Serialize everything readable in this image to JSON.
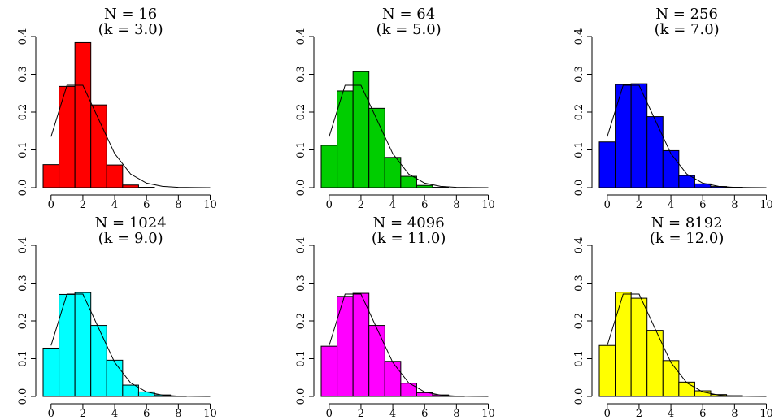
{
  "chart_data": [
    {
      "type": "bar",
      "title": "N = 16",
      "subtitle": "(k = 3.0)",
      "bar_color": "#ff0000",
      "x_ticks": [
        "0",
        "2",
        "4",
        "6",
        "8",
        "10"
      ],
      "y_ticks": [
        "0.0",
        "0.1",
        "0.2",
        "0.3",
        "0.4"
      ],
      "xlim": [
        -0.5,
        10.5
      ],
      "ylim": [
        0,
        0.4
      ],
      "bars": [
        {
          "x": 0,
          "value": 0.061
        },
        {
          "x": 1,
          "value": 0.268
        },
        {
          "x": 2,
          "value": 0.384
        },
        {
          "x": 3,
          "value": 0.219
        },
        {
          "x": 4,
          "value": 0.06
        },
        {
          "x": 5,
          "value": 0.007
        },
        {
          "x": 6,
          "value": 0.001
        },
        {
          "x": 7,
          "value": 0.0
        },
        {
          "x": 8,
          "value": 0.0
        },
        {
          "x": 9,
          "value": 0.0
        },
        {
          "x": 10,
          "value": 0.0
        }
      ],
      "curve": {
        "x": [
          0,
          1,
          2,
          3,
          4,
          5,
          6,
          7,
          8,
          9,
          10
        ],
        "y": [
          0.135,
          0.271,
          0.271,
          0.18,
          0.09,
          0.036,
          0.012,
          0.0034,
          0.0009,
          0.0002,
          0.0
        ]
      }
    },
    {
      "type": "bar",
      "title": "N = 64",
      "subtitle": "(k = 5.0)",
      "bar_color": "#00cd00",
      "x_ticks": [
        "0",
        "2",
        "4",
        "6",
        "8",
        "10"
      ],
      "y_ticks": [
        "0.0",
        "0.1",
        "0.2",
        "0.3",
        "0.4"
      ],
      "xlim": [
        -0.5,
        10.5
      ],
      "ylim": [
        0,
        0.4
      ],
      "bars": [
        {
          "x": 0,
          "value": 0.112
        },
        {
          "x": 1,
          "value": 0.256
        },
        {
          "x": 2,
          "value": 0.307
        },
        {
          "x": 3,
          "value": 0.21
        },
        {
          "x": 4,
          "value": 0.08
        },
        {
          "x": 5,
          "value": 0.03
        },
        {
          "x": 6,
          "value": 0.006
        },
        {
          "x": 7,
          "value": 0.001
        },
        {
          "x": 8,
          "value": 0.0
        },
        {
          "x": 9,
          "value": 0.0
        },
        {
          "x": 10,
          "value": 0.0
        }
      ],
      "curve": {
        "x": [
          0,
          1,
          2,
          3,
          4,
          5,
          6,
          7,
          8,
          9,
          10
        ],
        "y": [
          0.135,
          0.271,
          0.271,
          0.18,
          0.09,
          0.036,
          0.012,
          0.0034,
          0.0009,
          0.0002,
          0.0
        ]
      }
    },
    {
      "type": "bar",
      "title": "N = 256",
      "subtitle": "(k = 7.0)",
      "bar_color": "#0000ff",
      "x_ticks": [
        "0",
        "2",
        "4",
        "6",
        "8",
        "10"
      ],
      "y_ticks": [
        "0.0",
        "0.1",
        "0.2",
        "0.3",
        "0.4"
      ],
      "xlim": [
        -0.5,
        10.5
      ],
      "ylim": [
        0,
        0.4
      ],
      "bars": [
        {
          "x": 0,
          "value": 0.121
        },
        {
          "x": 1,
          "value": 0.273
        },
        {
          "x": 2,
          "value": 0.275
        },
        {
          "x": 3,
          "value": 0.188
        },
        {
          "x": 4,
          "value": 0.098
        },
        {
          "x": 5,
          "value": 0.032
        },
        {
          "x": 6,
          "value": 0.01
        },
        {
          "x": 7,
          "value": 0.003
        },
        {
          "x": 8,
          "value": 0.001
        },
        {
          "x": 9,
          "value": 0.0
        },
        {
          "x": 10,
          "value": 0.0
        }
      ],
      "curve": {
        "x": [
          0,
          1,
          2,
          3,
          4,
          5,
          6,
          7,
          8,
          9,
          10
        ],
        "y": [
          0.135,
          0.271,
          0.271,
          0.18,
          0.09,
          0.036,
          0.012,
          0.0034,
          0.0009,
          0.0002,
          0.0
        ]
      }
    },
    {
      "type": "bar",
      "title": "N = 1024",
      "subtitle": "(k = 9.0)",
      "bar_color": "#00ffff",
      "x_ticks": [
        "0",
        "2",
        "4",
        "6",
        "8",
        "10"
      ],
      "y_ticks": [
        "0.0",
        "0.1",
        "0.2",
        "0.3",
        "0.4"
      ],
      "xlim": [
        -0.5,
        10.5
      ],
      "ylim": [
        0,
        0.4
      ],
      "bars": [
        {
          "x": 0,
          "value": 0.128
        },
        {
          "x": 1,
          "value": 0.27
        },
        {
          "x": 2,
          "value": 0.275
        },
        {
          "x": 3,
          "value": 0.188
        },
        {
          "x": 4,
          "value": 0.096
        },
        {
          "x": 5,
          "value": 0.03
        },
        {
          "x": 6,
          "value": 0.012
        },
        {
          "x": 7,
          "value": 0.004
        },
        {
          "x": 8,
          "value": 0.001
        },
        {
          "x": 9,
          "value": 0.0
        },
        {
          "x": 10,
          "value": 0.0
        }
      ],
      "curve": {
        "x": [
          0,
          1,
          2,
          3,
          4,
          5,
          6,
          7,
          8,
          9,
          10
        ],
        "y": [
          0.135,
          0.271,
          0.271,
          0.18,
          0.09,
          0.036,
          0.012,
          0.0034,
          0.0009,
          0.0002,
          0.0
        ]
      }
    },
    {
      "type": "bar",
      "title": "N = 4096",
      "subtitle": "(k = 11.0)",
      "bar_color": "#ff00ff",
      "x_ticks": [
        "0",
        "2",
        "4",
        "6",
        "8",
        "10"
      ],
      "y_ticks": [
        "0.0",
        "0.1",
        "0.2",
        "0.3",
        "0.4"
      ],
      "xlim": [
        -0.5,
        10.5
      ],
      "ylim": [
        0,
        0.4
      ],
      "bars": [
        {
          "x": 0,
          "value": 0.133
        },
        {
          "x": 1,
          "value": 0.265
        },
        {
          "x": 2,
          "value": 0.273
        },
        {
          "x": 3,
          "value": 0.188
        },
        {
          "x": 4,
          "value": 0.093
        },
        {
          "x": 5,
          "value": 0.035
        },
        {
          "x": 6,
          "value": 0.01
        },
        {
          "x": 7,
          "value": 0.004
        },
        {
          "x": 8,
          "value": 0.001
        },
        {
          "x": 9,
          "value": 0.0
        },
        {
          "x": 10,
          "value": 0.0
        }
      ],
      "curve": {
        "x": [
          0,
          1,
          2,
          3,
          4,
          5,
          6,
          7,
          8,
          9,
          10
        ],
        "y": [
          0.135,
          0.271,
          0.271,
          0.18,
          0.09,
          0.036,
          0.012,
          0.0034,
          0.0009,
          0.0002,
          0.0
        ]
      }
    },
    {
      "type": "bar",
      "title": "N = 8192",
      "subtitle": "(k = 12.0)",
      "bar_color": "#ffff00",
      "x_ticks": [
        "0",
        "2",
        "4",
        "6",
        "8",
        "10"
      ],
      "y_ticks": [
        "0.0",
        "0.1",
        "0.2",
        "0.3",
        "0.4"
      ],
      "xlim": [
        -0.5,
        10.5
      ],
      "ylim": [
        0,
        0.4
      ],
      "bars": [
        {
          "x": 0,
          "value": 0.135
        },
        {
          "x": 1,
          "value": 0.276
        },
        {
          "x": 2,
          "value": 0.26
        },
        {
          "x": 3,
          "value": 0.175
        },
        {
          "x": 4,
          "value": 0.095
        },
        {
          "x": 5,
          "value": 0.038
        },
        {
          "x": 6,
          "value": 0.015
        },
        {
          "x": 7,
          "value": 0.005
        },
        {
          "x": 8,
          "value": 0.002
        },
        {
          "x": 9,
          "value": 0.0
        },
        {
          "x": 10,
          "value": 0.0
        }
      ],
      "curve": {
        "x": [
          0,
          1,
          2,
          3,
          4,
          5,
          6,
          7,
          8,
          9,
          10
        ],
        "y": [
          0.135,
          0.271,
          0.271,
          0.18,
          0.09,
          0.036,
          0.012,
          0.0034,
          0.0009,
          0.0002,
          0.0
        ]
      }
    }
  ]
}
